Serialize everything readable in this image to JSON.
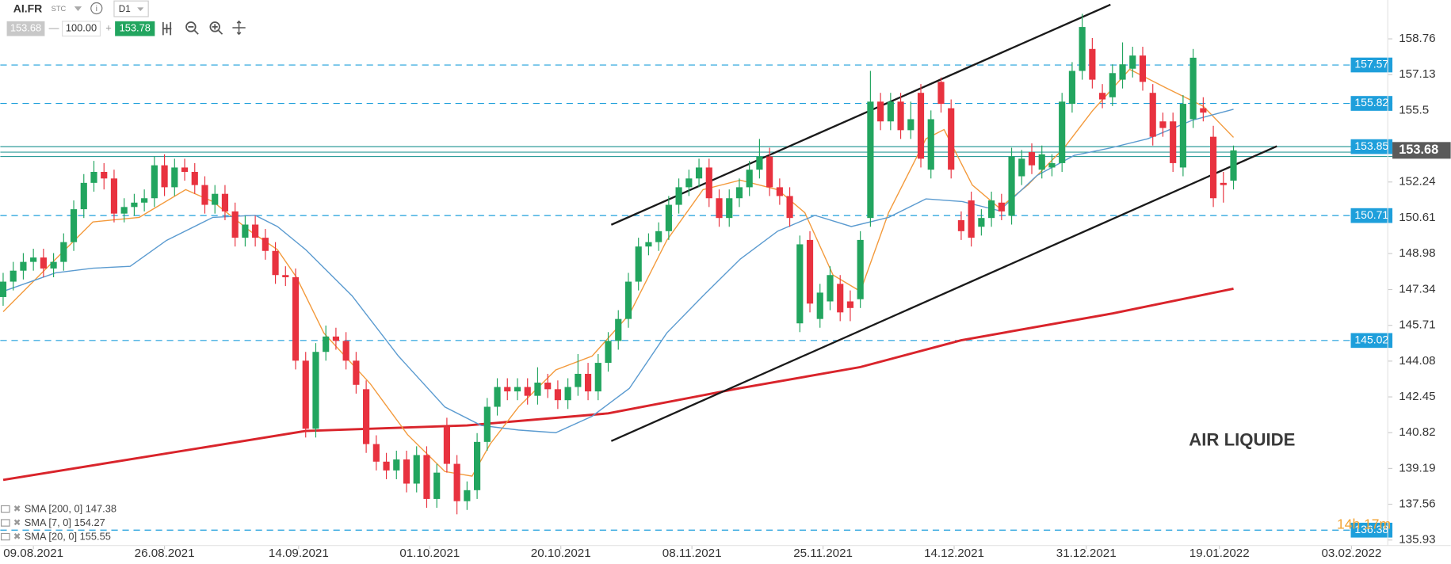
{
  "toolbar": {
    "symbol": "AI.FR",
    "market": "STC",
    "info": "i",
    "timeframe": "D1",
    "bid": "153.68",
    "minus": "—",
    "volume": "100.00",
    "plus": "+",
    "ask": "153.78"
  },
  "chart_data": {
    "type": "candlestick",
    "title": "AIR LIQUIDE",
    "countdown": "14h 17m",
    "up_color": "#22a55f",
    "down_color": "#e8323f",
    "xlim": [
      -0.28,
      137.3
    ],
    "ylim": [
      135.68,
      160.53
    ],
    "xticks": [
      {
        "value": 3,
        "label": "09.08.2021"
      },
      {
        "value": 16,
        "label": "26.08.2021"
      },
      {
        "value": 29.3,
        "label": "14.09.2021"
      },
      {
        "value": 42.3,
        "label": "01.10.2021"
      },
      {
        "value": 55.3,
        "label": "20.10.2021"
      },
      {
        "value": 68.3,
        "label": "08.11.2021"
      },
      {
        "value": 81.3,
        "label": "25.11.2021"
      },
      {
        "value": 94.3,
        "label": "14.12.2021"
      },
      {
        "value": 107.4,
        "label": "31.12.2021"
      },
      {
        "value": 120.6,
        "label": "19.01.2022"
      },
      {
        "value": 133.7,
        "label": "03.02.2022"
      }
    ],
    "yticks": [
      135.93,
      137.56,
      139.19,
      140.82,
      142.45,
      144.08,
      145.71,
      147.34,
      148.98,
      150.61,
      152.24,
      155.5,
      157.13,
      158.76
    ],
    "candles": {
      "open": [
        147.0,
        147.7,
        148.2,
        148.6,
        148.8,
        148.3,
        148.6,
        149.5,
        151.0,
        152.2,
        152.7,
        152.4,
        150.8,
        151.1,
        151.3,
        151.5,
        153.0,
        152.0,
        152.9,
        152.7,
        152.1,
        151.2,
        151.7,
        150.9,
        149.7,
        150.3,
        149.7,
        149.1,
        148.0,
        147.9,
        144.1,
        141.0,
        144.5,
        145.2,
        145.0,
        144.1,
        142.8,
        140.3,
        139.5,
        139.1,
        139.6,
        138.5,
        139.8,
        137.8,
        141.1,
        139.4,
        137.7,
        138.2,
        140.4,
        142.0,
        142.9,
        142.7,
        142.9,
        142.5,
        143.1,
        142.8,
        142.3,
        142.9,
        143.5,
        142.7,
        144.0,
        145.0,
        146.0,
        147.7,
        149.3,
        149.5,
        150.0,
        151.2,
        152.0,
        152.4,
        152.9,
        151.5,
        150.6,
        151.5,
        152.0,
        152.8,
        153.4,
        152.0,
        151.6,
        145.8,
        149.6,
        146.0,
        146.8,
        147.6,
        146.8,
        146.9,
        150.6,
        155.9,
        155.0,
        155.9,
        154.6,
        156.3,
        152.8,
        156.8,
        155.6,
        150.5,
        151.4,
        150.2,
        150.6,
        151.3,
        150.7,
        152.5,
        153.6,
        152.8,
        152.9,
        153.1,
        155.8,
        157.3,
        158.3,
        156.3,
        156.1,
        156.9,
        157.4,
        158.0,
        156.3,
        155.0,
        155.0,
        152.9,
        155.1,
        155.6,
        154.3,
        152.2,
        152.3
      ],
      "high": [
        148.1,
        148.6,
        149.0,
        149.2,
        149.2,
        149.0,
        149.9,
        151.4,
        152.6,
        153.2,
        153.1,
        152.8,
        151.5,
        151.7,
        151.9,
        153.4,
        153.5,
        153.3,
        153.3,
        153.1,
        152.5,
        152.1,
        152.1,
        151.3,
        150.7,
        150.7,
        150.1,
        149.5,
        148.4,
        148.3,
        144.5,
        144.9,
        145.7,
        145.6,
        145.4,
        144.5,
        143.2,
        140.7,
        139.9,
        140.0,
        140.0,
        140.2,
        140.2,
        139.4,
        141.5,
        139.8,
        138.6,
        140.8,
        142.4,
        143.3,
        143.3,
        143.3,
        143.3,
        143.8,
        143.5,
        143.2,
        143.3,
        144.4,
        144.0,
        144.4,
        145.4,
        146.4,
        148.1,
        149.7,
        149.9,
        150.4,
        151.6,
        152.4,
        152.8,
        153.3,
        153.3,
        151.9,
        151.9,
        152.4,
        153.2,
        154.2,
        153.8,
        152.4,
        152.0,
        149.8,
        150.0,
        147.6,
        148.4,
        148.0,
        147.3,
        150.0,
        157.3,
        156.3,
        156.3,
        156.3,
        155.9,
        156.7,
        155.5,
        157.0,
        156.0,
        150.9,
        151.8,
        151.0,
        151.8,
        151.7,
        153.8,
        153.7,
        154.0,
        153.9,
        153.5,
        156.3,
        157.7,
        159.9,
        158.8,
        156.7,
        157.6,
        158.6,
        158.4,
        158.4,
        156.7,
        155.4,
        155.4,
        156.2,
        158.3,
        156.1,
        154.8,
        152.7,
        153.9
      ],
      "low": [
        146.6,
        147.3,
        147.8,
        148.2,
        147.9,
        147.9,
        148.2,
        149.1,
        150.6,
        151.8,
        151.9,
        150.4,
        150.4,
        150.7,
        150.9,
        151.1,
        151.6,
        151.6,
        152.3,
        151.7,
        150.8,
        150.8,
        150.5,
        149.3,
        149.3,
        149.3,
        148.7,
        147.6,
        147.5,
        143.7,
        140.6,
        140.6,
        144.1,
        144.6,
        143.7,
        142.6,
        139.9,
        139.1,
        138.7,
        138.7,
        138.1,
        138.1,
        137.4,
        137.4,
        139.0,
        137.1,
        137.3,
        137.8,
        140.0,
        141.6,
        142.3,
        142.3,
        142.1,
        142.1,
        142.4,
        141.9,
        141.9,
        142.5,
        142.3,
        142.3,
        143.6,
        144.6,
        145.6,
        147.3,
        148.9,
        149.1,
        149.6,
        150.8,
        151.6,
        152.0,
        151.1,
        150.2,
        150.2,
        151.1,
        151.6,
        152.4,
        151.6,
        151.2,
        150.2,
        145.4,
        146.3,
        145.6,
        146.4,
        145.9,
        145.9,
        146.5,
        150.2,
        154.6,
        154.6,
        154.2,
        154.2,
        152.9,
        152.4,
        155.4,
        152.4,
        149.6,
        149.3,
        149.8,
        150.2,
        150.5,
        150.3,
        152.1,
        152.6,
        152.4,
        152.5,
        152.7,
        155.4,
        156.9,
        156.5,
        155.6,
        155.7,
        156.5,
        157.0,
        156.4,
        153.9,
        154.3,
        152.7,
        152.5,
        154.7,
        155.0,
        151.1,
        151.3,
        151.9
      ],
      "close": [
        147.7,
        148.2,
        148.6,
        148.8,
        148.3,
        148.6,
        149.5,
        151.0,
        152.2,
        152.7,
        152.4,
        150.8,
        151.1,
        151.3,
        151.5,
        153.0,
        152.0,
        152.9,
        152.7,
        152.1,
        151.2,
        151.7,
        150.9,
        149.7,
        150.3,
        149.7,
        149.1,
        148.0,
        147.9,
        144.1,
        141.0,
        144.5,
        145.2,
        145.0,
        144.1,
        143.0,
        140.3,
        139.5,
        139.1,
        139.6,
        138.5,
        139.8,
        137.8,
        139.0,
        139.4,
        137.7,
        138.2,
        140.4,
        142.0,
        142.9,
        142.7,
        142.9,
        142.5,
        143.1,
        142.8,
        142.3,
        142.9,
        143.5,
        142.7,
        144.0,
        145.0,
        146.0,
        147.7,
        149.3,
        149.5,
        150.0,
        151.2,
        152.0,
        152.4,
        152.9,
        151.5,
        150.6,
        151.5,
        152.0,
        152.8,
        153.4,
        152.0,
        151.6,
        150.6,
        149.4,
        146.7,
        147.2,
        148.0,
        146.3,
        146.5,
        149.6,
        155.9,
        155.0,
        155.9,
        154.6,
        155.1,
        153.3,
        155.1,
        155.8,
        152.8,
        150.0,
        149.7,
        150.6,
        151.4,
        150.9,
        153.4,
        153.3,
        153.0,
        153.5,
        153.1,
        155.9,
        157.3,
        159.3,
        156.9,
        156.0,
        157.2,
        157.6,
        158.0,
        156.8,
        154.3,
        154.7,
        153.1,
        155.8,
        157.9,
        155.4,
        151.5,
        152.1,
        153.68
      ]
    },
    "series": [
      {
        "name": "SMA [200, 0] 147.38",
        "color": "#d9242b",
        "width": 2.5,
        "x": [
          0,
          30,
          46,
          60,
          73,
          85,
          95,
          110,
          122
        ],
        "values": [
          138.67,
          140.9,
          141.15,
          141.7,
          142.84,
          143.81,
          145.03,
          146.25,
          147.38
        ]
      },
      {
        "name": "SMA [7, 0] 154.27",
        "color": "#f39a3c",
        "width": 1.2,
        "x": [
          0,
          4.3,
          8.9,
          13.5,
          18.1,
          20.8,
          24.5,
          27.2,
          29.1,
          31.8,
          36.4,
          40.1,
          43.8,
          46.5,
          48.3,
          51.1,
          54.8,
          58.4,
          62.1,
          65.8,
          69.4,
          73.1,
          76.8,
          79.5,
          82.3,
          85,
          87.8,
          91.5,
          93.3,
          96.1,
          98.8,
          101.6,
          105.2,
          108,
          111.7,
          115.3,
          119,
          122
        ],
        "values": [
          146.33,
          148.31,
          150.42,
          150.63,
          151.89,
          151.35,
          150.0,
          149.16,
          147.89,
          145.36,
          143.05,
          140.73,
          139.05,
          138.84,
          140.31,
          141.99,
          143.68,
          144.31,
          146.21,
          149.58,
          151.89,
          152.32,
          151.89,
          150.84,
          148.0,
          147.26,
          150.84,
          154.21,
          154.63,
          152.1,
          151.05,
          152.1,
          153.79,
          155.47,
          157.37,
          156.53,
          155.69,
          154.27
        ]
      },
      {
        "name": "SMA [20, 0] 155.55",
        "color": "#5b9bd0",
        "width": 1.2,
        "x": [
          0,
          5.2,
          8.9,
          12.6,
          16.2,
          20.8,
          25,
          27.2,
          30,
          34.6,
          39.2,
          43.8,
          47.4,
          51.1,
          54.8,
          58.4,
          62.1,
          65.8,
          69.4,
          73.1,
          76.8,
          80.5,
          84.1,
          87.8,
          91.5,
          95.1,
          98.8,
          102.5,
          106.2,
          109.8,
          113.5,
          117.9,
          122
        ],
        "values": [
          147.26,
          148.1,
          148.31,
          148.4,
          149.58,
          150.63,
          150.72,
          150.21,
          149.16,
          147.05,
          144.31,
          141.99,
          141.15,
          140.94,
          140.82,
          141.57,
          142.84,
          145.36,
          147.05,
          148.73,
          150.0,
          150.72,
          150.21,
          150.63,
          151.47,
          151.35,
          150.93,
          152.53,
          153.45,
          153.79,
          154.21,
          155.05,
          155.55
        ]
      }
    ],
    "trendlines": [
      {
        "color": "#1a1a1a",
        "x": [
          60.3,
          109.8
        ],
        "values": [
          150.29,
          160.32
        ]
      },
      {
        "color": "#1a1a1a",
        "x": [
          60.3,
          126.3
        ],
        "values": [
          140.44,
          153.87
        ]
      }
    ],
    "dashed_levels": [
      157.57,
      155.82,
      150.71,
      145.02,
      136.38
    ],
    "solid_levels": [
      153.85
    ],
    "zone_lines": [
      153.6,
      153.4
    ],
    "level_color": "#1e9fdb",
    "zone_color": "#2f9c9a",
    "last_price": 153.68
  }
}
